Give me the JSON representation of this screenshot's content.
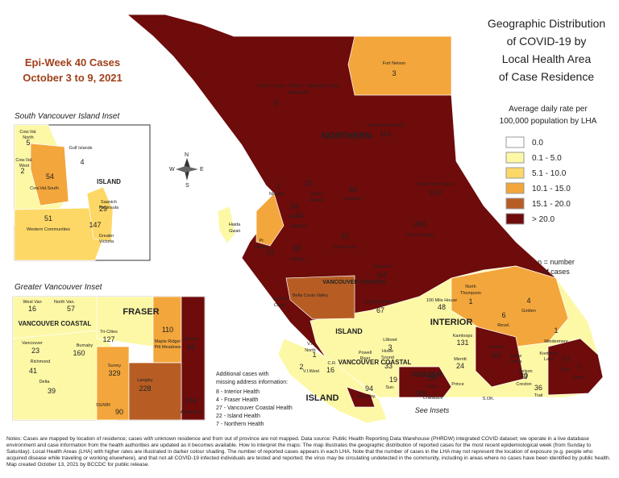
{
  "epi_week": {
    "title": "Epi-Week 40 Cases",
    "dates": "October 3 to 9, 2021"
  },
  "title": [
    "Geographic Distribution",
    "of COVID-19 by",
    "Local Health Area",
    "of Case Residence"
  ],
  "legend": {
    "title": [
      "Average daily rate per",
      "100,000 population by LHA"
    ],
    "items": [
      {
        "label": "0.0",
        "color": "#ffffff"
      },
      {
        "label": "0.1 - 5.0",
        "color": "#fdf8a6"
      },
      {
        "label": "5.1 - 10.0",
        "color": "#fed866"
      },
      {
        "label": "10.1 - 15.0",
        "color": "#f3a63b"
      },
      {
        "label": "15.1 - 20.0",
        "color": "#b75d24"
      },
      {
        "label": "> 20.0",
        "color": "#6e0b0b"
      }
    ],
    "note": [
      "n = number",
      "of cases"
    ]
  },
  "health_authorities": [
    "NORTHERN",
    "INTERIOR",
    "VANCOUVER COASTAL",
    "VANCOUVER COASTAL",
    "FRASER",
    "ISLAND",
    "ISLAND"
  ],
  "lhas": [
    {
      "name": [
        "Fort Nelson"
      ],
      "cases": 3
    },
    {
      "name": [
        "Snow Country - Stikine - Telegraph Creek",
        "Aggregate"
      ],
      "cases": 9
    },
    {
      "name": [
        "Peace River North"
      ],
      "cases": 115
    },
    {
      "name": [
        "Peace River South"
      ],
      "cases": 100
    },
    {
      "name": [
        "Prince George"
      ],
      "cases": 284
    },
    {
      "name": [
        "Nechako"
      ],
      "cases": 65
    },
    {
      "name": [
        "Upper",
        "Skeena"
      ],
      "cases": 25
    },
    {
      "name": [
        "Terrace"
      ],
      "cases": 54
    },
    {
      "name": [
        "Nisga'a"
      ],
      "cases": 1
    },
    {
      "name": [
        "Smithers"
      ],
      "cases": 73
    },
    {
      "name": [
        "Burns Lake"
      ],
      "cases": 31
    },
    {
      "name": [
        "Kitimat"
      ],
      "cases": 18
    },
    {
      "name": [
        "Pr.",
        "Rupert"
      ],
      "cases": 15
    },
    {
      "name": [
        "Quesnel"
      ],
      "cases": 64
    },
    {
      "name": [
        "Cariboo/Chilcotin"
      ],
      "cases": 67
    },
    {
      "name": [
        "100 Mile House"
      ],
      "cases": 48
    },
    {
      "name": [
        "North",
        "Thompson"
      ],
      "cases": 1
    },
    {
      "name": [
        "Golden"
      ],
      "cases": 4
    },
    {
      "name": [
        "Revel."
      ],
      "cases": 6
    },
    {
      "name": [
        "Windermere"
      ],
      "cases": 1
    },
    {
      "name": [
        "Kamloops"
      ],
      "cases": 131
    },
    {
      "name": [
        "Lillooet"
      ],
      "cases": 3
    },
    {
      "name": [
        "Merritt"
      ],
      "cases": 24
    },
    {
      "name": [
        "Vernon"
      ],
      "cases": 63
    },
    {
      "name": [
        "Nelson"
      ],
      "cases": 3
    },
    {
      "name": [
        "Creston"
      ],
      "cases": 30
    },
    {
      "name": [
        "Cran."
      ],
      "cases": 77
    },
    {
      "name": [
        "Fernie"
      ],
      "cases": 7
    },
    {
      "name": [
        "Trail"
      ],
      "cases": 36
    },
    {
      "name": [
        "Howe",
        "Sound"
      ],
      "cases": 33
    },
    {
      "name": [
        "Chilliwack"
      ],
      "cases": 289
    },
    {
      "name": [
        "Hope"
      ],
      "cases": 20
    },
    {
      "name": [
        "V.I.",
        "North"
      ],
      "cases": 1
    },
    {
      "name": [
        "C.R."
      ],
      "cases": 16
    },
    {
      "name": [
        "V.I.West"
      ],
      "cases": 2
    },
    {
      "name": [
        "Alb./Clay."
      ],
      "cases": 94
    },
    {
      "name": [
        "Sun."
      ],
      "cases": 19
    }
  ],
  "other_labels": [
    "Haida",
    "Gwaii",
    "Central",
    "Coast",
    "Bella Coola Valley",
    "Kootenay",
    "Lake",
    "Arrow",
    "Lakes",
    "Prince",
    "S.OK.",
    "Powell",
    "River"
  ],
  "south_vancouver_island_inset": {
    "title": "South Vancouver Island Inset",
    "island_label": "ISLAND",
    "lhas": [
      {
        "name": [
          "Cow.Val.",
          "North"
        ],
        "cases": 5
      },
      {
        "name": [
          "Cow.Val.",
          "West"
        ],
        "cases": 2
      },
      {
        "name": [
          "Cow.Val.South"
        ],
        "cases": 54
      },
      {
        "name": [
          "Saanich",
          "Peninsula"
        ],
        "cases": 29
      },
      {
        "name": [
          "Greater",
          "Victoria"
        ],
        "cases": 147
      },
      {
        "name": [
          "Western Communities"
        ],
        "cases": 51
      },
      {
        "name": [
          "Gulf Islands"
        ],
        "cases": 4
      }
    ]
  },
  "greater_vancouver_inset": {
    "title": "Greater Vancouver Inset",
    "labels": [
      "FRASER",
      "VANCOUVER COASTAL"
    ],
    "lhas": [
      {
        "name": [
          "West Van"
        ],
        "cases": 16
      },
      {
        "name": [
          "North Van."
        ],
        "cases": 57
      },
      {
        "name": [
          "Vancouver"
        ],
        "cases": 23
      },
      {
        "name": [
          "Burnaby"
        ],
        "cases": 160
      },
      {
        "name": [
          "Tri-Cities"
        ],
        "cases": 127
      },
      {
        "name": [
          "Maple Ridge/",
          "Pitt Meadows"
        ],
        "cases": 110
      },
      {
        "name": [
          "Mission"
        ],
        "cases": 69
      },
      {
        "name": [
          "Richmond"
        ],
        "cases": 41
      },
      {
        "name": [
          "Surrey"
        ],
        "cases": 329
      },
      {
        "name": [
          "Delta"
        ],
        "cases": 39
      },
      {
        "name": [
          "Langley"
        ],
        "cases": 228
      },
      {
        "name": [
          "SS/WR"
        ],
        "cases": 90
      },
      {
        "name": [
          "Abbotsford"
        ],
        "cases": 244
      }
    ]
  },
  "missing_address": {
    "title": [
      "Additional cases with",
      "missing address information:"
    ],
    "items": [
      "8 - Interior Health",
      "4 - Fraser Health",
      "27 - Vancouver Coastal Health",
      "22 - Island Health",
      "7 - Northern Health"
    ]
  },
  "see_insets": "See Insets",
  "notes": "Notes: Cases are mapped by location of residence; cases with unknown residence and from out of province are not mapped. Data source: Public Health Reporting Data Warehouse (PHRDW) integrated COVID dataset; we operate in a live database environment and case information from the health authorities are updated as it becomes available. How to interpret the maps: The map illustrates the geographic distribution of reported cases for the most recent epidemiological week (from Sunday to Saturday). Local Health Areas (LHA) with higher rates are illustrated in darker colour shading. The number of reported cases appears in each LHA. Note that the number of cases in the LHA may not represent the location of exposure (e.g. people who acquired disease while traveling or working elsewhere), and that not all COVID-19 infected individuals are tested and reported; the virus may be circulating undetected in the community, including in areas where no cases have been identified by public health. Map created October 13, 2021 by BCCDC for public release."
}
